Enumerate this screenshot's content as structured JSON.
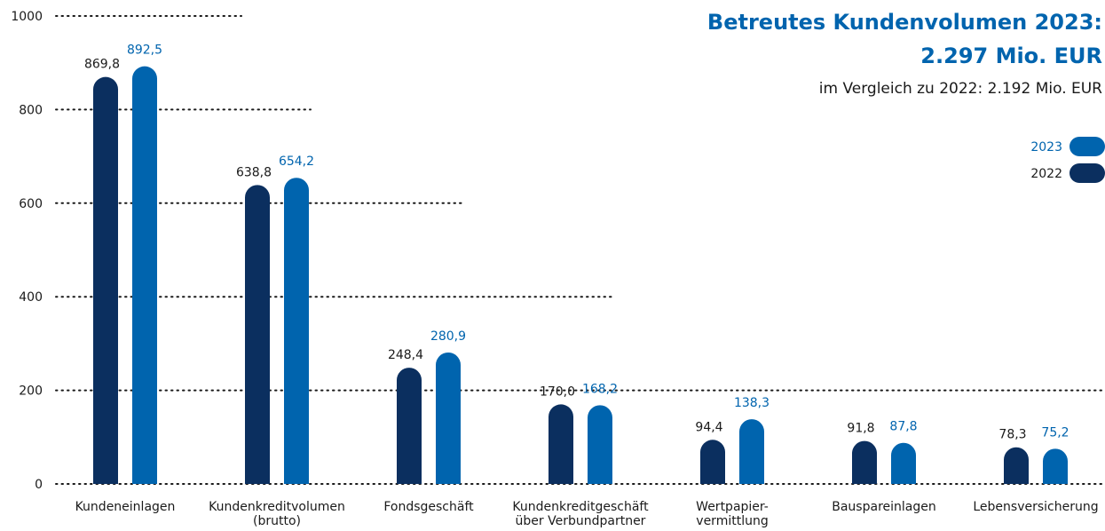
{
  "chart_data": {
    "type": "bar",
    "title": "Betreutes Kundenvolumen 2023:\n2.297 Mio. EUR",
    "subtitle": "im Vergleich zu 2022: 2.192 Mio. EUR",
    "categories": [
      "Kundeneinlagen",
      "Kundenkreditvolumen\n(brutto)",
      "Fondsgeschäft",
      "Kundenkreditgeschäft\nüber Verbundpartner",
      "Wertpapier-\nvermittlung",
      "Bauspareinlagen",
      "Lebensversicherung"
    ],
    "series": [
      {
        "name": "2022",
        "color": "#0b2f5f",
        "values": [
          869.8,
          638.8,
          248.4,
          170.0,
          94.4,
          91.8,
          78.3
        ],
        "value_labels": [
          "869,8",
          "638,8",
          "248,4",
          "170,0",
          "94,4",
          "91,8",
          "78,3"
        ]
      },
      {
        "name": "2023",
        "color": "#0064ae",
        "values": [
          892.5,
          654.2,
          280.9,
          168.2,
          138.3,
          87.8,
          75.2
        ],
        "value_labels": [
          "892,5",
          "654,2",
          "280,9",
          "168,2",
          "138,3",
          "87,8",
          "75,2"
        ]
      }
    ],
    "ylim": [
      0,
      1000
    ],
    "yticks": [
      0,
      200,
      400,
      600,
      800,
      1000
    ],
    "grid": true
  }
}
